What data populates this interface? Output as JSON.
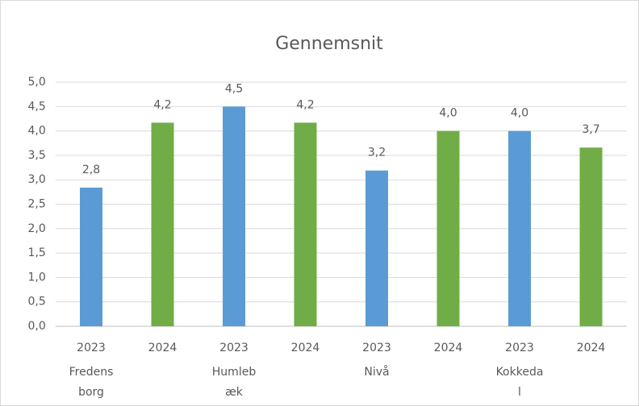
{
  "chart_data": {
    "type": "bar",
    "title": "Gennemsnit",
    "categories": [
      "2023",
      "2024",
      "2023",
      "2024",
      "2023",
      "2024",
      "2023",
      "2024"
    ],
    "group_labels": [
      [
        "Fredens",
        "borg"
      ],
      [
        "Humleb",
        "æk"
      ],
      [
        "Nivå"
      ],
      [
        "Kokkeda",
        "l"
      ]
    ],
    "values": [
      2.84,
      4.17,
      4.5,
      4.17,
      3.19,
      4.0,
      4.0,
      3.66
    ],
    "value_labels": [
      "2,8",
      "4,2",
      "4,5",
      "4,2",
      "3,2",
      "4,0",
      "4,0",
      "3,7"
    ],
    "colors": [
      "#5b9bd5",
      "#70ad47",
      "#5b9bd5",
      "#70ad47",
      "#5b9bd5",
      "#70ad47",
      "#5b9bd5",
      "#70ad47"
    ],
    "ylim": [
      0,
      5
    ],
    "yticks": [
      {
        "value": 0,
        "label": "0,0"
      },
      {
        "value": 0.5,
        "label": "0,5"
      },
      {
        "value": 1,
        "label": "1,0"
      },
      {
        "value": 1.5,
        "label": "1,5"
      },
      {
        "value": 2,
        "label": "2,0"
      },
      {
        "value": 2.5,
        "label": "2,5"
      },
      {
        "value": 3,
        "label": "3,0"
      },
      {
        "value": 3.5,
        "label": "3,5"
      },
      {
        "value": 4,
        "label": "4,0"
      },
      {
        "value": 4.5,
        "label": "4,5"
      },
      {
        "value": 5,
        "label": "5,0"
      }
    ],
    "grid": true
  }
}
